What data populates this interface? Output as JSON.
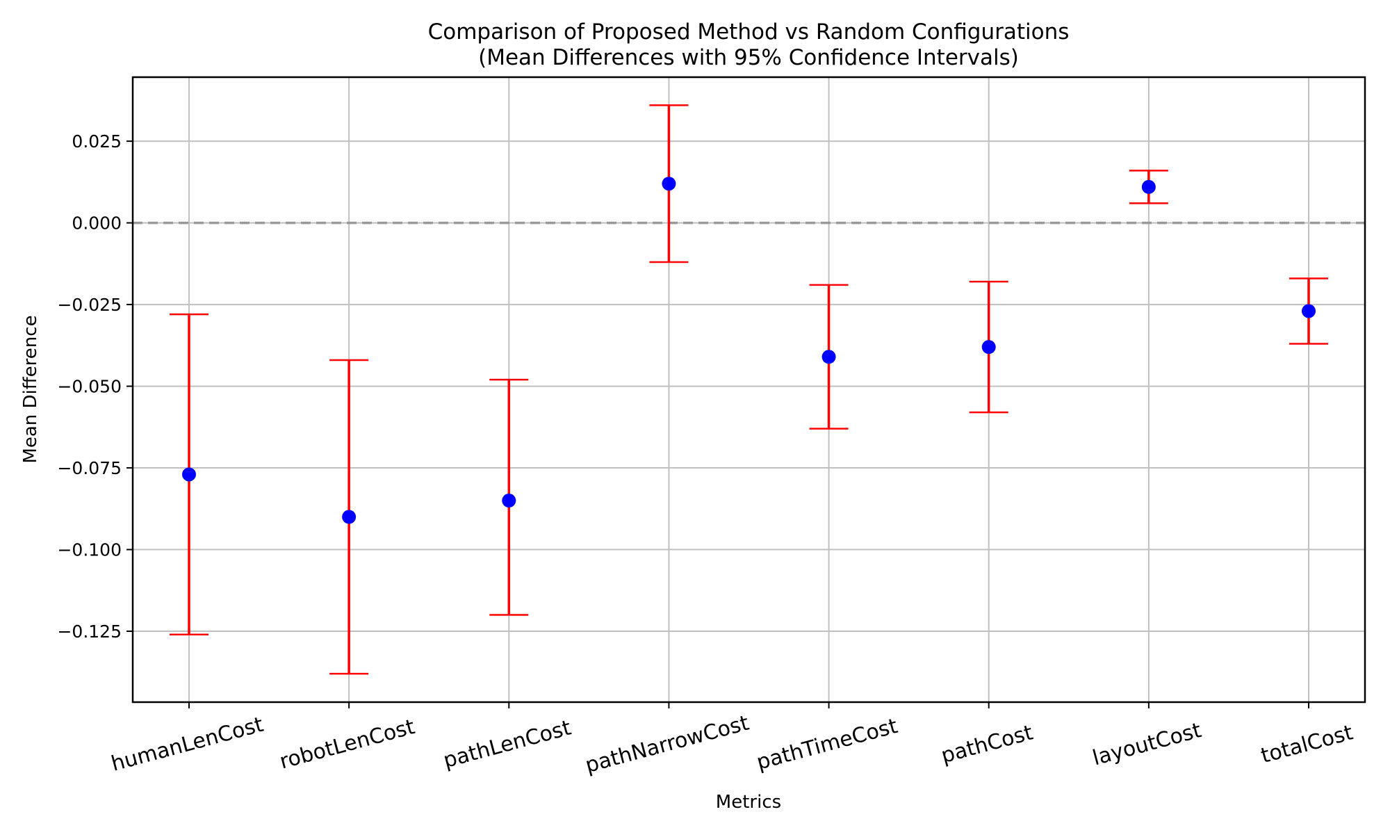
{
  "chart_data": {
    "type": "errorbar",
    "title": "Comparison of Proposed Method vs Random Configurations",
    "subtitle": "(Mean Differences with 95% Confidence Intervals)",
    "xlabel": "Metrics",
    "ylabel": "Mean Difference",
    "categories": [
      "humanLenCost",
      "robotLenCost",
      "pathLenCost",
      "pathNarrowCost",
      "pathTimeCost",
      "pathCost",
      "layoutCost",
      "totalCost"
    ],
    "values": [
      -0.077,
      -0.09,
      -0.085,
      0.012,
      -0.041,
      -0.038,
      0.011,
      -0.027
    ],
    "ci_lower": [
      -0.126,
      -0.138,
      -0.12,
      -0.012,
      -0.063,
      -0.058,
      0.006,
      -0.037
    ],
    "ci_upper": [
      -0.028,
      -0.042,
      -0.048,
      0.036,
      -0.019,
      -0.018,
      0.016,
      -0.017
    ],
    "yticks": [
      0.025,
      0.0,
      -0.025,
      -0.05,
      -0.075,
      -0.1,
      -0.125
    ],
    "ytick_labels": [
      "0.025",
      "0.000",
      "−0.025",
      "−0.050",
      "−0.075",
      "−0.100",
      "−0.125"
    ],
    "ylim": [
      -0.1467,
      0.0446
    ],
    "reference_line": {
      "y": 0.0,
      "style": "dashed",
      "color": "#999999"
    },
    "grid": true,
    "legend": null,
    "xtick_rotation": 15,
    "colors": {
      "point": "#0000ff",
      "errorbar": "#ff0000",
      "grid": "#c0c0c0",
      "zero_line": "#999999"
    }
  }
}
